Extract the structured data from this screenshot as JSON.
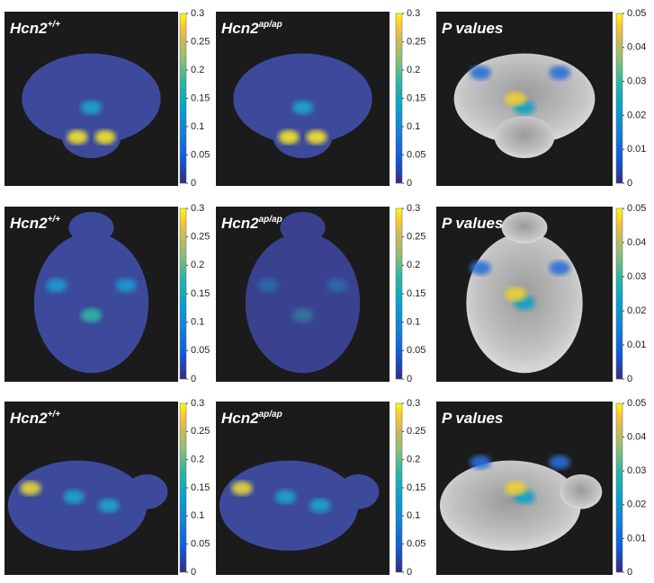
{
  "panels": [
    {
      "title": "Hcn2",
      "superscript": "+/+",
      "colorbar": {
        "lim": [
          0,
          0.3
        ],
        "ticks": [
          0,
          0.05,
          0.1,
          0.15,
          0.2,
          0.25,
          0.3
        ]
      }
    },
    {
      "title": "Hcn2",
      "superscript": "ap/ap",
      "colorbar": {
        "lim": [
          0,
          0.3
        ],
        "ticks": [
          0,
          0.05,
          0.1,
          0.15,
          0.2,
          0.25,
          0.3
        ]
      }
    },
    {
      "title": "P values",
      "colorbar": {
        "lim": [
          0,
          0.05
        ],
        "ticks": [
          0,
          0.01,
          0.02,
          0.03,
          0.04,
          0.05
        ]
      }
    },
    {
      "title": "Hcn2",
      "superscript": "+/+",
      "colorbar": {
        "lim": [
          0,
          0.3
        ],
        "ticks": [
          0,
          0.05,
          0.1,
          0.15,
          0.2,
          0.25,
          0.3
        ]
      }
    },
    {
      "title": "Hcn2",
      "superscript": "ap/ap",
      "colorbar": {
        "lim": [
          0,
          0.3
        ],
        "ticks": [
          0,
          0.05,
          0.1,
          0.15,
          0.2,
          0.25,
          0.3
        ]
      }
    },
    {
      "title": "P values",
      "colorbar": {
        "lim": [
          0,
          0.05
        ],
        "ticks": [
          0,
          0.01,
          0.02,
          0.03,
          0.04,
          0.05
        ]
      }
    },
    {
      "title": "Hcn2",
      "superscript": "+/+",
      "colorbar": {
        "lim": [
          0,
          0.3
        ],
        "ticks": [
          0,
          0.05,
          0.1,
          0.15,
          0.2,
          0.25,
          0.3
        ]
      }
    },
    {
      "title": "Hcn2",
      "superscript": "ap/ap",
      "colorbar": {
        "lim": [
          0,
          0.3
        ],
        "ticks": [
          0,
          0.05,
          0.1,
          0.15,
          0.2,
          0.25,
          0.3
        ]
      }
    },
    {
      "title": "P values",
      "colorbar": {
        "lim": [
          0,
          0.05
        ],
        "ticks": [
          0,
          0.01,
          0.02,
          0.03,
          0.04,
          0.05
        ]
      }
    }
  ]
}
